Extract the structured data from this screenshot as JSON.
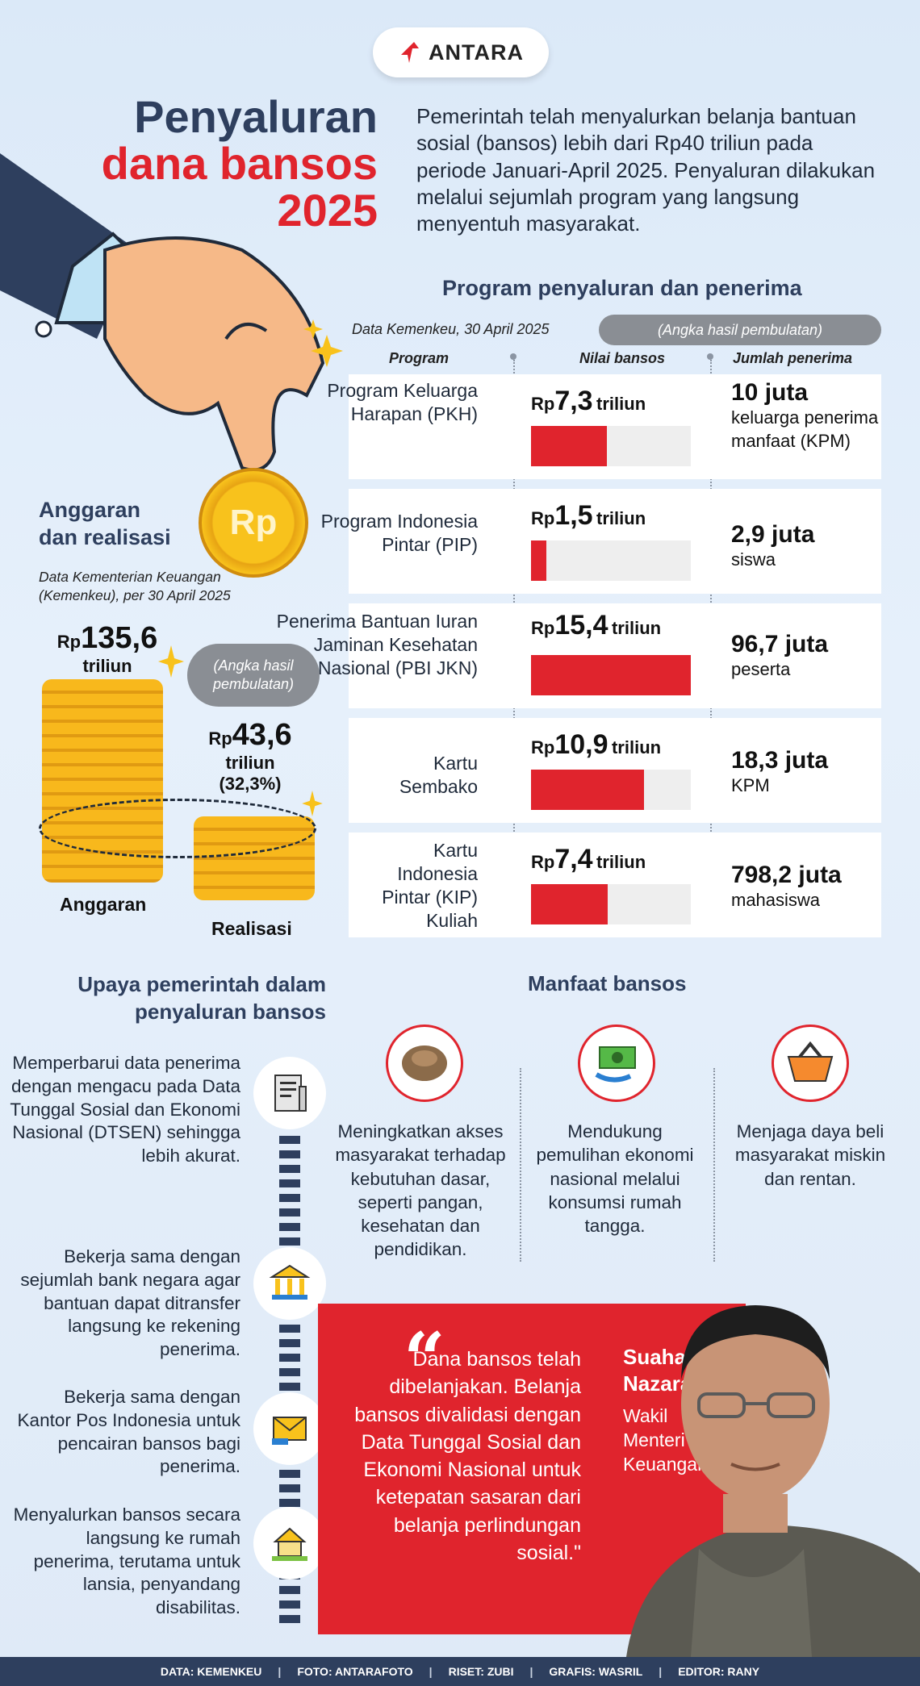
{
  "brand": {
    "logo_text": "ANTARA",
    "accent_red": "#e0242d",
    "navy": "#2e3f5e"
  },
  "title": {
    "line1": "Penyaluran",
    "line2": "dana bansos",
    "line3": "2025"
  },
  "intro": "Pemerintah telah menyalurkan belanja bantuan sosial (bansos) lebih dari Rp40 triliun pada periode Januari-April 2025. Penyaluran dilakukan melalui sejumlah program yang langsung menyentuh masyarakat.",
  "program_section": {
    "title": "Program penyaluran dan penerima",
    "source": "Data Kemenkeu, 30 April 2025",
    "note": "(Angka hasil pembulatan)",
    "col_program": "Program",
    "col_value": "Nilai bansos",
    "col_recipients": "Jumlah penerima",
    "rows": [
      {
        "name": "Program Keluarga Harapan (PKH)",
        "rp": "Rp",
        "value": "7,3",
        "unit": "triliun",
        "fill": 0.474,
        "recipients": "10 juta",
        "recipients_desc": "keluarga penerima manfaat (KPM)"
      },
      {
        "name": "Program Indonesia Pintar (PIP)",
        "rp": "Rp",
        "value": "1,5",
        "unit": "triliun",
        "fill": 0.097,
        "recipients": "2,9 juta",
        "recipients_desc": "siswa"
      },
      {
        "name": "Penerima Bantuan Iuran Jaminan Kesehatan Nasional (PBI JKN)",
        "rp": "Rp",
        "value": "15,4",
        "unit": "triliun",
        "fill": 1.0,
        "recipients": "96,7 juta",
        "recipients_desc": "peserta"
      },
      {
        "name": "Kartu Sembako",
        "rp": "Rp",
        "value": "10,9",
        "unit": "triliun",
        "fill": 0.708,
        "recipients": "18,3 juta",
        "recipients_desc": "KPM"
      },
      {
        "name": "Kartu Indonesia Pintar (KIP) Kuliah",
        "rp": "Rp",
        "value": "7,4",
        "unit": "triliun",
        "fill": 0.481,
        "recipients": "798,2 juta",
        "recipients_desc": "mahasiswa"
      }
    ]
  },
  "budget_section": {
    "title_line1": "Anggaran",
    "title_line2": "dan realisasi",
    "source_line1": "Data Kementerian Keuangan",
    "source_line2": "(Kemenkeu), per 30 April 2025",
    "note_line1": "(Angka hasil",
    "note_line2": "pembulatan)",
    "coin_symbol": "Rp",
    "budget": {
      "rp": "Rp",
      "value": "135,6",
      "unit": "triliun",
      "label": "Anggaran"
    },
    "realization": {
      "rp": "Rp",
      "value": "43,6",
      "unit": "triliun",
      "percent": "(32,3%)",
      "label": "Realisasi"
    }
  },
  "upaya_section": {
    "title_line1": "Upaya pemerintah dalam",
    "title_line2": "penyaluran bansos",
    "items": [
      {
        "text": "Memperbarui data penerima dengan mengacu pada Data Tunggal Sosial dan Ekonomi Nasional (DTSEN) sehingga lebih akurat.",
        "icon": "document-icon"
      },
      {
        "text": "Bekerja sama dengan sejumlah bank negara agar bantuan dapat ditransfer langsung ke rekening penerima.",
        "icon": "bank-icon"
      },
      {
        "text": "Bekerja sama dengan Kantor Pos Indonesia untuk pencairan bansos bagi penerima.",
        "icon": "envelope-icon"
      },
      {
        "text": "Menyalurkan bansos secara langsung ke rumah penerima, terutama untuk lansia, penyandang disabilitas.",
        "icon": "house-icon"
      }
    ]
  },
  "manfaat_section": {
    "title": "Manfaat bansos",
    "items": [
      {
        "text": "Meningkatkan akses masyarakat terhadap kebutuhan dasar, seperti pangan, kesehatan dan pendidikan.",
        "icon": "food-sack-icon"
      },
      {
        "text": "Mendukung pemulihan ekonomi nasional melalui konsumsi rumah tangga.",
        "icon": "money-cycle-icon"
      },
      {
        "text": "Menjaga daya beli masyarakat miskin dan rentan.",
        "icon": "shopping-basket-icon"
      }
    ]
  },
  "quote": {
    "mark": "“",
    "text": "Dana bansos telah dibelanjakan. Belanja bansos divalidasi dengan Data Tunggal Sosial dan Ekonomi Nasional untuk ketepatan sasaran dari belanja perlindungan sosial.\"",
    "speaker_line1": "Suahasil",
    "speaker_line2": "Nazara",
    "role_line1": "Wakil",
    "role_line2": "Menteri",
    "role_line3": "Keuangan"
  },
  "footer": {
    "data": "DATA: KEMENKEU",
    "foto": "FOTO: ANTARAFOTO",
    "riset": "RISET: ZUBI",
    "grafis": "GRAFIS: WASRIL",
    "editor": "EDITOR: RANY",
    "separator": "|"
  }
}
